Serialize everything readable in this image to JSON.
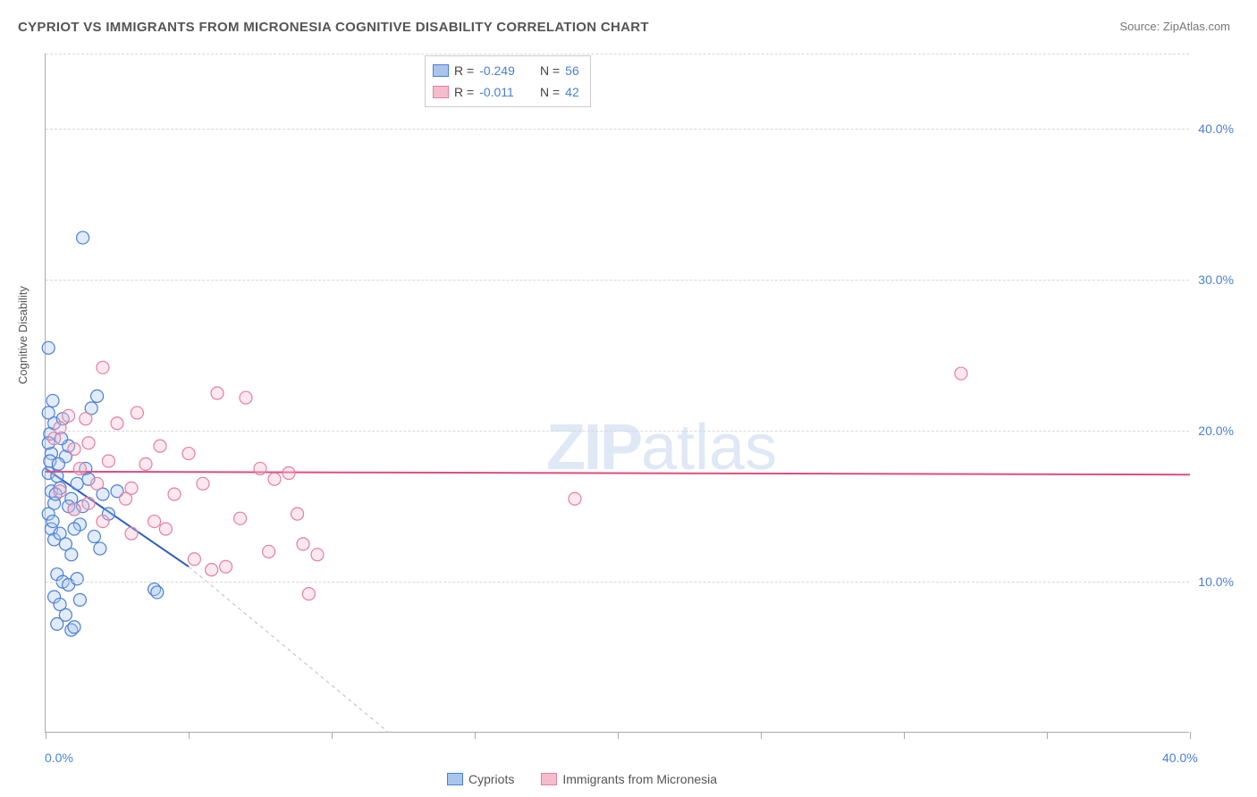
{
  "title": "CYPRIOT VS IMMIGRANTS FROM MICRONESIA COGNITIVE DISABILITY CORRELATION CHART",
  "source": "Source: ZipAtlas.com",
  "ylabel": "Cognitive Disability",
  "watermark_bold": "ZIP",
  "watermark_rest": "atlas",
  "chart": {
    "type": "scatter",
    "xlim": [
      0,
      40
    ],
    "ylim": [
      0,
      45
    ],
    "y_gridlines": [
      10,
      20,
      30,
      40
    ],
    "y_tick_labels": [
      "10.0%",
      "20.0%",
      "30.0%",
      "40.0%"
    ],
    "x_ticks": [
      0,
      5,
      10,
      15,
      20,
      25,
      30,
      35,
      40
    ],
    "x_tick_labels": {
      "0": "0.0%",
      "40": "40.0%"
    },
    "background_color": "#ffffff",
    "grid_color": "#d8d8d8",
    "axis_color": "#aaaaaa",
    "tick_label_color": "#4a7fd8",
    "marker_radius": 7,
    "marker_stroke_width": 1.2,
    "marker_fill_opacity": 0.35,
    "series": [
      {
        "name": "Cypriots",
        "color_stroke": "#4a7fd8",
        "color_fill": "#a9c5ee",
        "R": "-0.249",
        "N": "56",
        "trend": {
          "x1": 0,
          "y1": 17.5,
          "x2": 5,
          "y2": 11,
          "color": "#2a5cc8",
          "width": 2,
          "extend_dashed_to_x": 12,
          "extend_dashed_to_y": 0
        },
        "points": [
          [
            0.1,
            17.2
          ],
          [
            0.2,
            18.5
          ],
          [
            0.15,
            19.8
          ],
          [
            0.3,
            20.5
          ],
          [
            0.1,
            21.2
          ],
          [
            0.25,
            22.0
          ],
          [
            0.1,
            25.5
          ],
          [
            0.2,
            16.0
          ],
          [
            0.3,
            15.2
          ],
          [
            0.1,
            14.5
          ],
          [
            0.4,
            17.0
          ],
          [
            0.5,
            16.2
          ],
          [
            0.7,
            18.3
          ],
          [
            0.8,
            19.0
          ],
          [
            0.6,
            20.8
          ],
          [
            0.9,
            15.5
          ],
          [
            1.0,
            14.8
          ],
          [
            1.1,
            16.5
          ],
          [
            1.2,
            13.8
          ],
          [
            1.3,
            15.0
          ],
          [
            1.4,
            17.5
          ],
          [
            1.6,
            21.5
          ],
          [
            1.8,
            22.3
          ],
          [
            1.5,
            16.8
          ],
          [
            0.2,
            13.5
          ],
          [
            0.3,
            12.8
          ],
          [
            0.5,
            13.2
          ],
          [
            0.7,
            12.5
          ],
          [
            0.9,
            11.8
          ],
          [
            0.4,
            10.5
          ],
          [
            0.6,
            10.0
          ],
          [
            0.8,
            9.8
          ],
          [
            0.3,
            9.0
          ],
          [
            0.5,
            8.5
          ],
          [
            0.7,
            7.8
          ],
          [
            0.4,
            7.2
          ],
          [
            0.9,
            6.8
          ],
          [
            1.0,
            7.0
          ],
          [
            1.2,
            8.8
          ],
          [
            1.1,
            10.2
          ],
          [
            2.0,
            15.8
          ],
          [
            2.2,
            14.5
          ],
          [
            2.5,
            16.0
          ],
          [
            1.7,
            13.0
          ],
          [
            1.9,
            12.2
          ],
          [
            1.3,
            32.8
          ],
          [
            0.1,
            19.2
          ],
          [
            0.15,
            18.0
          ],
          [
            0.25,
            14.0
          ],
          [
            0.35,
            15.8
          ],
          [
            0.45,
            17.8
          ],
          [
            0.55,
            19.5
          ],
          [
            0.8,
            15.0
          ],
          [
            1.0,
            13.5
          ],
          [
            3.8,
            9.5
          ],
          [
            3.9,
            9.3
          ]
        ]
      },
      {
        "name": "Immigrants from Micronesia",
        "color_stroke": "#e57fa0",
        "color_fill": "#f5bccd",
        "R": "-0.011",
        "N": "42",
        "trend": {
          "x1": 0,
          "y1": 17.3,
          "x2": 40,
          "y2": 17.1,
          "color": "#e04d7e",
          "width": 2
        },
        "points": [
          [
            0.3,
            19.5
          ],
          [
            0.5,
            20.2
          ],
          [
            0.8,
            21.0
          ],
          [
            1.0,
            18.8
          ],
          [
            1.2,
            17.5
          ],
          [
            1.5,
            19.2
          ],
          [
            1.4,
            20.8
          ],
          [
            1.8,
            16.5
          ],
          [
            2.0,
            24.2
          ],
          [
            2.2,
            18.0
          ],
          [
            2.5,
            20.5
          ],
          [
            2.8,
            15.5
          ],
          [
            3.0,
            16.2
          ],
          [
            3.2,
            21.2
          ],
          [
            3.5,
            17.8
          ],
          [
            3.8,
            14.0
          ],
          [
            4.0,
            19.0
          ],
          [
            4.5,
            15.8
          ],
          [
            5.0,
            18.5
          ],
          [
            5.2,
            11.5
          ],
          [
            5.5,
            16.5
          ],
          [
            6.0,
            22.5
          ],
          [
            6.3,
            11.0
          ],
          [
            6.8,
            14.2
          ],
          [
            7.0,
            22.2
          ],
          [
            7.5,
            17.5
          ],
          [
            7.8,
            12.0
          ],
          [
            8.0,
            16.8
          ],
          [
            8.5,
            17.2
          ],
          [
            8.8,
            14.5
          ],
          [
            9.0,
            12.5
          ],
          [
            9.2,
            9.2
          ],
          [
            9.5,
            11.8
          ],
          [
            5.8,
            10.8
          ],
          [
            4.2,
            13.5
          ],
          [
            2.0,
            14.0
          ],
          [
            3.0,
            13.2
          ],
          [
            1.0,
            14.8
          ],
          [
            18.5,
            15.5
          ],
          [
            32.0,
            23.8
          ],
          [
            0.5,
            16.0
          ],
          [
            1.5,
            15.2
          ]
        ]
      }
    ]
  },
  "stats_legend_labels": {
    "R": "R =",
    "N": "N ="
  },
  "bottom_legend": {
    "items": [
      {
        "label": "Cypriots",
        "fill": "#a9c5ee",
        "stroke": "#4a7fd8"
      },
      {
        "label": "Immigrants from Micronesia",
        "fill": "#f5bccd",
        "stroke": "#e57fa0"
      }
    ]
  }
}
